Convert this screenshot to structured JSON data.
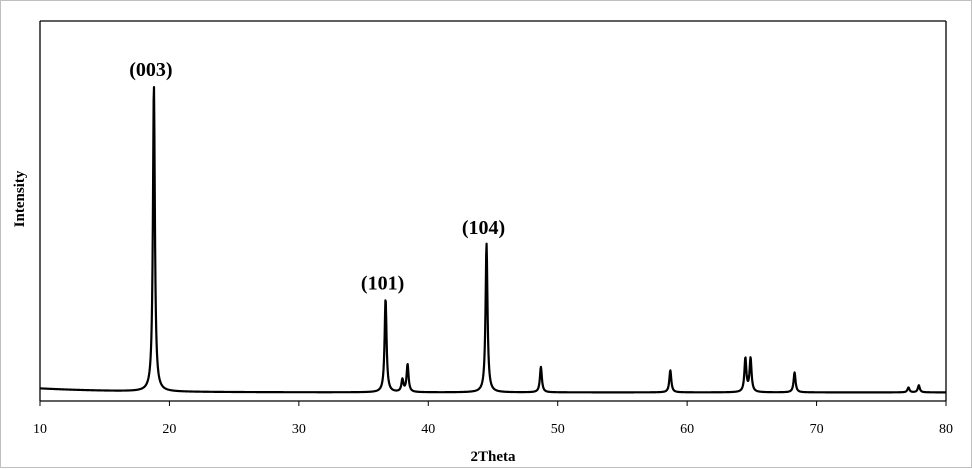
{
  "chart_data": {
    "type": "line",
    "title": "",
    "xlabel": "2Theta",
    "ylabel": "Intensity",
    "xlim": [
      10,
      80
    ],
    "ylim": [
      0,
      100
    ],
    "xticks": [
      10,
      20,
      30,
      40,
      50,
      60,
      70,
      80
    ],
    "yticks_shown": false,
    "grid": false,
    "legend": "none",
    "line_color": "#000000",
    "background": 1.3,
    "peaks": [
      {
        "x": 18.8,
        "y": 100,
        "label": "(003)"
      },
      {
        "x": 36.7,
        "y": 30.5,
        "label": "(101)"
      },
      {
        "x": 38.0,
        "y": 4.0,
        "label": ""
      },
      {
        "x": 38.4,
        "y": 9.0,
        "label": ""
      },
      {
        "x": 44.5,
        "y": 48.5,
        "label": "(104)"
      },
      {
        "x": 48.7,
        "y": 8.3,
        "label": ""
      },
      {
        "x": 58.7,
        "y": 7.2,
        "label": ""
      },
      {
        "x": 64.5,
        "y": 11.0,
        "label": ""
      },
      {
        "x": 64.9,
        "y": 11.0,
        "label": ""
      },
      {
        "x": 68.3,
        "y": 6.5,
        "label": ""
      },
      {
        "x": 77.1,
        "y": 1.6,
        "label": ""
      },
      {
        "x": 77.9,
        "y": 2.3,
        "label": ""
      }
    ]
  }
}
